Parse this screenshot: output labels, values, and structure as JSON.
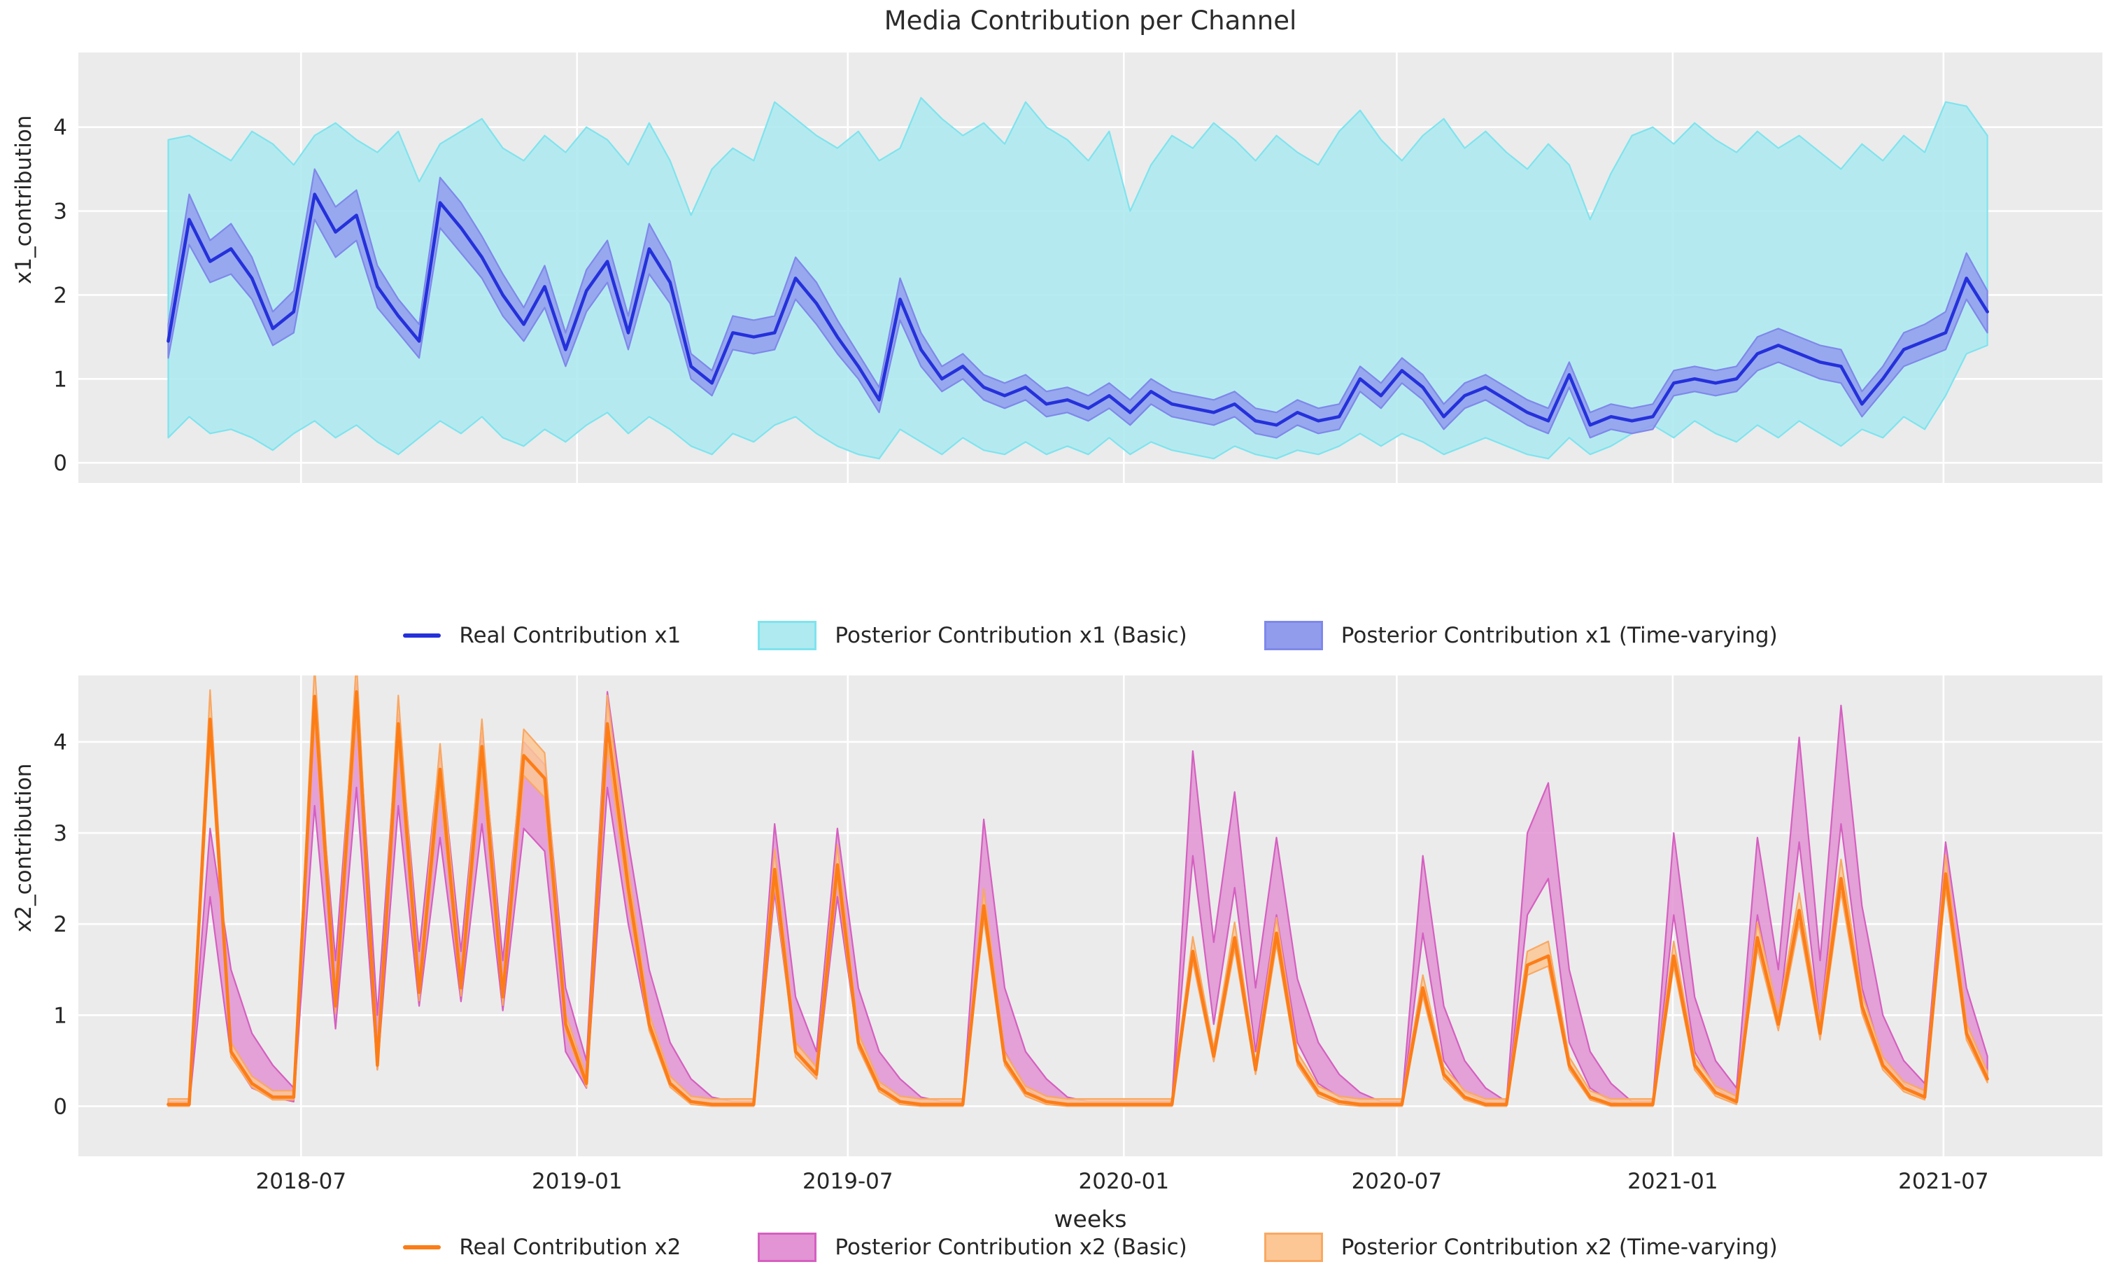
{
  "title": "Media Contribution per Channel",
  "xlabel": "weeks",
  "colors": {
    "figure_bg": "#ffffff",
    "plot_bg": "#ebebeb",
    "grid": "#ffffff",
    "text": "#262626",
    "x1_line": "#2531da",
    "x1_basic_fill": "#aeeaf0",
    "x1_basic_edge": "#7fe3ee",
    "x1_tv_fill": "#929ced",
    "x1_tv_edge": "#7f88ea",
    "x2_line": "#fc7d17",
    "x2_basic_fill": "#e294d4",
    "x2_basic_edge": "#d55fc0",
    "x2_tv_fill": "#fcc795",
    "x2_tv_edge": "#f9a863"
  },
  "chart_data": [
    {
      "type": "line",
      "ylabel": "x1_contribution",
      "yticks": [
        0,
        1,
        2,
        3,
        4
      ],
      "ylim": [
        -0.24,
        4.89
      ],
      "xlim": [
        -8.6,
        185
      ],
      "week_step": 2,
      "show_xtick_labels": false,
      "xticks": [
        {
          "week": 12.7,
          "label": "2018-07"
        },
        {
          "week": 39.1,
          "label": "2019-01"
        },
        {
          "week": 65.0,
          "label": "2019-07"
        },
        {
          "week": 91.4,
          "label": "2020-01"
        },
        {
          "week": 117.5,
          "label": "2020-07"
        },
        {
          "week": 143.9,
          "label": "2021-01"
        },
        {
          "week": 169.8,
          "label": "2021-07"
        }
      ],
      "legend": [
        {
          "label": "Real Contribution x1",
          "swatch": "line",
          "color_key": "x1_line"
        },
        {
          "label": "Posterior Contribution x1 (Basic)",
          "swatch": "patch",
          "fill_key": "x1_basic_fill",
          "edge_key": "x1_basic_edge"
        },
        {
          "label": "Posterior Contribution x1 (Time-varying)",
          "swatch": "patch",
          "fill_key": "x1_tv_fill",
          "edge_key": "x1_tv_edge"
        }
      ],
      "series": {
        "real": [
          1.45,
          2.9,
          2.4,
          2.55,
          2.2,
          1.6,
          1.8,
          3.2,
          2.75,
          2.95,
          2.1,
          1.75,
          1.45,
          3.1,
          2.8,
          2.45,
          2.0,
          1.65,
          2.1,
          1.35,
          2.05,
          2.4,
          1.55,
          2.55,
          2.15,
          1.15,
          0.95,
          1.55,
          1.5,
          1.55,
          2.2,
          1.9,
          1.5,
          1.15,
          0.75,
          1.95,
          1.35,
          1.0,
          1.15,
          0.9,
          0.8,
          0.9,
          0.7,
          0.75,
          0.65,
          0.8,
          0.6,
          0.85,
          0.7,
          0.65,
          0.6,
          0.7,
          0.5,
          0.45,
          0.6,
          0.5,
          0.55,
          1.0,
          0.8,
          1.1,
          0.9,
          0.55,
          0.8,
          0.9,
          0.75,
          0.6,
          0.5,
          1.05,
          0.45,
          0.55,
          0.5,
          0.55,
          0.95,
          1.0,
          0.95,
          1.0,
          1.3,
          1.4,
          1.3,
          1.2,
          1.15,
          0.7,
          1.0,
          1.35,
          1.45,
          1.55,
          2.2,
          1.8
        ],
        "tv_lo": [
          1.25,
          2.6,
          2.15,
          2.25,
          1.95,
          1.4,
          1.55,
          2.9,
          2.45,
          2.65,
          1.85,
          1.55,
          1.25,
          2.8,
          2.5,
          2.2,
          1.75,
          1.45,
          1.85,
          1.15,
          1.8,
          2.15,
          1.35,
          2.25,
          1.9,
          1.0,
          0.8,
          1.35,
          1.3,
          1.35,
          1.95,
          1.65,
          1.3,
          1.0,
          0.6,
          1.7,
          1.15,
          0.85,
          1.0,
          0.75,
          0.65,
          0.75,
          0.55,
          0.6,
          0.5,
          0.65,
          0.45,
          0.7,
          0.55,
          0.5,
          0.45,
          0.55,
          0.35,
          0.3,
          0.45,
          0.35,
          0.4,
          0.85,
          0.65,
          0.95,
          0.75,
          0.4,
          0.65,
          0.75,
          0.6,
          0.45,
          0.35,
          0.9,
          0.3,
          0.4,
          0.35,
          0.4,
          0.8,
          0.85,
          0.8,
          0.85,
          1.1,
          1.2,
          1.1,
          1.0,
          0.95,
          0.55,
          0.85,
          1.15,
          1.25,
          1.35,
          1.95,
          1.55
        ],
        "tv_hi": [
          1.65,
          3.2,
          2.65,
          2.85,
          2.45,
          1.8,
          2.05,
          3.5,
          3.05,
          3.25,
          2.35,
          1.95,
          1.65,
          3.4,
          3.1,
          2.7,
          2.25,
          1.85,
          2.35,
          1.55,
          2.3,
          2.65,
          1.75,
          2.85,
          2.4,
          1.3,
          1.1,
          1.75,
          1.7,
          1.75,
          2.45,
          2.15,
          1.7,
          1.3,
          0.9,
          2.2,
          1.55,
          1.15,
          1.3,
          1.05,
          0.95,
          1.05,
          0.85,
          0.9,
          0.8,
          0.95,
          0.75,
          1.0,
          0.85,
          0.8,
          0.75,
          0.85,
          0.65,
          0.6,
          0.75,
          0.65,
          0.7,
          1.15,
          0.95,
          1.25,
          1.05,
          0.7,
          0.95,
          1.05,
          0.9,
          0.75,
          0.65,
          1.2,
          0.6,
          0.7,
          0.65,
          0.7,
          1.1,
          1.15,
          1.1,
          1.15,
          1.5,
          1.6,
          1.5,
          1.4,
          1.35,
          0.85,
          1.15,
          1.55,
          1.65,
          1.8,
          2.5,
          2.05
        ],
        "basic_lo": [
          0.3,
          0.55,
          0.35,
          0.4,
          0.3,
          0.15,
          0.35,
          0.5,
          0.3,
          0.45,
          0.25,
          0.1,
          0.3,
          0.5,
          0.35,
          0.55,
          0.3,
          0.2,
          0.4,
          0.25,
          0.45,
          0.6,
          0.35,
          0.55,
          0.4,
          0.2,
          0.1,
          0.35,
          0.25,
          0.45,
          0.55,
          0.35,
          0.2,
          0.1,
          0.05,
          0.4,
          0.25,
          0.1,
          0.3,
          0.15,
          0.1,
          0.25,
          0.1,
          0.2,
          0.1,
          0.3,
          0.1,
          0.25,
          0.15,
          0.1,
          0.05,
          0.2,
          0.1,
          0.05,
          0.15,
          0.1,
          0.2,
          0.35,
          0.2,
          0.35,
          0.25,
          0.1,
          0.2,
          0.3,
          0.2,
          0.1,
          0.05,
          0.3,
          0.1,
          0.2,
          0.35,
          0.45,
          0.3,
          0.5,
          0.35,
          0.25,
          0.45,
          0.3,
          0.5,
          0.35,
          0.2,
          0.4,
          0.3,
          0.55,
          0.4,
          0.8,
          1.3,
          1.4
        ],
        "basic_hi": [
          3.85,
          3.9,
          3.75,
          3.6,
          3.95,
          3.8,
          3.55,
          3.9,
          4.05,
          3.85,
          3.7,
          3.95,
          3.35,
          3.8,
          3.95,
          4.1,
          3.75,
          3.6,
          3.9,
          3.7,
          4.0,
          3.85,
          3.55,
          4.05,
          3.6,
          2.95,
          3.5,
          3.75,
          3.6,
          4.3,
          4.1,
          3.9,
          3.75,
          3.95,
          3.6,
          3.75,
          4.35,
          4.1,
          3.9,
          4.05,
          3.8,
          4.3,
          4.0,
          3.85,
          3.6,
          3.95,
          3.0,
          3.55,
          3.9,
          3.75,
          4.05,
          3.85,
          3.6,
          3.9,
          3.7,
          3.55,
          3.95,
          4.2,
          3.85,
          3.6,
          3.9,
          4.1,
          3.75,
          3.95,
          3.7,
          3.5,
          3.8,
          3.55,
          2.9,
          3.45,
          3.9,
          4.0,
          3.8,
          4.05,
          3.85,
          3.7,
          3.95,
          3.75,
          3.9,
          3.7,
          3.5,
          3.8,
          3.6,
          3.9,
          3.7,
          4.3,
          4.25,
          3.9
        ]
      }
    },
    {
      "type": "line",
      "ylabel": "x2_contribution",
      "yticks": [
        0,
        1,
        2,
        3,
        4
      ],
      "ylim": [
        -0.55,
        4.73
      ],
      "xlim": [
        -8.6,
        185
      ],
      "week_step": 2,
      "show_xtick_labels": true,
      "xticks": [
        {
          "week": 12.7,
          "label": "2018-07"
        },
        {
          "week": 39.1,
          "label": "2019-01"
        },
        {
          "week": 65.0,
          "label": "2019-07"
        },
        {
          "week": 91.4,
          "label": "2020-01"
        },
        {
          "week": 117.5,
          "label": "2020-07"
        },
        {
          "week": 143.9,
          "label": "2021-01"
        },
        {
          "week": 169.8,
          "label": "2021-07"
        }
      ],
      "legend": [
        {
          "label": "Real Contribution x2",
          "swatch": "line",
          "color_key": "x2_line"
        },
        {
          "label": "Posterior Contribution x2 (Basic)",
          "swatch": "patch",
          "fill_key": "x2_basic_fill",
          "edge_key": "x2_basic_edge"
        },
        {
          "label": "Posterior Contribution x2 (Time-varying)",
          "swatch": "patch",
          "fill_key": "x2_tv_fill",
          "edge_key": "x2_tv_edge"
        }
      ],
      "series": {
        "real": [
          0.02,
          0.02,
          4.25,
          0.6,
          0.25,
          0.1,
          0.1,
          4.5,
          1.1,
          4.55,
          0.45,
          4.2,
          1.25,
          3.7,
          1.3,
          3.95,
          1.2,
          3.85,
          3.6,
          0.9,
          0.25,
          4.2,
          2.4,
          0.9,
          0.25,
          0.05,
          0.02,
          0.02,
          0.02,
          2.6,
          0.6,
          0.35,
          2.65,
          0.7,
          0.2,
          0.05,
          0.02,
          0.02,
          0.02,
          2.2,
          0.5,
          0.15,
          0.05,
          0.02,
          0.02,
          0.02,
          0.02,
          0.02,
          0.02,
          1.7,
          0.55,
          1.85,
          0.4,
          1.9,
          0.5,
          0.15,
          0.05,
          0.02,
          0.02,
          0.02,
          1.3,
          0.35,
          0.1,
          0.02,
          0.02,
          1.55,
          1.65,
          0.45,
          0.1,
          0.02,
          0.02,
          0.02,
          1.65,
          0.45,
          0.15,
          0.05,
          1.85,
          0.9,
          2.15,
          0.8,
          2.5,
          1.1,
          0.45,
          0.2,
          0.1,
          2.55,
          0.8,
          0.3
        ],
        "basic_lo": [
          0,
          0,
          2.3,
          0.55,
          0.2,
          0.1,
          0.05,
          3.3,
          0.85,
          3.5,
          0.4,
          3.3,
          1.1,
          2.95,
          1.15,
          3.1,
          1.05,
          3.05,
          2.8,
          0.6,
          0.2,
          3.5,
          2.0,
          0.85,
          0.25,
          0.05,
          0,
          0,
          0,
          2.35,
          0.6,
          0.3,
          2.3,
          0.7,
          0.25,
          0.05,
          0,
          0,
          0,
          2.3,
          0.6,
          0.2,
          0.05,
          0,
          0,
          0,
          0,
          0,
          0,
          2.75,
          0.9,
          2.4,
          0.6,
          2.1,
          0.7,
          0.25,
          0.1,
          0,
          0,
          0,
          1.9,
          0.5,
          0.15,
          0.05,
          0,
          2.1,
          2.5,
          0.7,
          0.2,
          0.05,
          0,
          0,
          2.1,
          0.6,
          0.2,
          0.05,
          2.1,
          0.95,
          2.9,
          0.9,
          3.1,
          1.3,
          0.5,
          0.25,
          0.1,
          2.6,
          0.85,
          0.3
        ],
        "basic_hi": [
          0.05,
          0.05,
          3.05,
          1.5,
          0.8,
          0.45,
          0.2,
          4.35,
          1.6,
          4.65,
          1.0,
          4.3,
          1.7,
          3.9,
          1.7,
          4.1,
          1.6,
          4.0,
          3.75,
          1.3,
          0.5,
          4.55,
          2.9,
          1.5,
          0.7,
          0.3,
          0.1,
          0.05,
          0.05,
          3.1,
          1.2,
          0.6,
          3.05,
          1.3,
          0.6,
          0.3,
          0.1,
          0.05,
          0.05,
          3.15,
          1.3,
          0.6,
          0.3,
          0.1,
          0.05,
          0.05,
          0.05,
          0.05,
          0.05,
          3.9,
          1.8,
          3.45,
          1.3,
          2.95,
          1.4,
          0.7,
          0.35,
          0.15,
          0.05,
          0.05,
          2.75,
          1.1,
          0.5,
          0.2,
          0.05,
          3.0,
          3.55,
          1.5,
          0.6,
          0.25,
          0.05,
          0.05,
          3.0,
          1.2,
          0.5,
          0.2,
          2.95,
          1.5,
          4.05,
          1.6,
          4.4,
          2.2,
          1.0,
          0.5,
          0.25,
          2.9,
          1.3,
          0.55
        ],
        "tv_lo": [
          0,
          0,
          4.01,
          0.54,
          0.21,
          0.07,
          0.07,
          4.25,
          1.02,
          4.29,
          0.4,
          3.96,
          1.16,
          3.49,
          1.21,
          3.72,
          1.11,
          3.63,
          3.39,
          0.83,
          0.21,
          3.96,
          2.25,
          0.83,
          0.21,
          0.02,
          0,
          0,
          0,
          2.44,
          0.54,
          0.3,
          2.49,
          0.64,
          0.16,
          0.02,
          0,
          0,
          0,
          2.06,
          0.45,
          0.11,
          0.02,
          0,
          0,
          0,
          0,
          0,
          0,
          1.59,
          0.49,
          1.73,
          0.35,
          1.78,
          0.45,
          0.11,
          0.02,
          0,
          0,
          0,
          1.21,
          0.3,
          0.07,
          0,
          0,
          1.44,
          1.54,
          0.4,
          0.07,
          0,
          0,
          0,
          1.54,
          0.4,
          0.11,
          0.02,
          1.73,
          0.83,
          2.01,
          0.73,
          2.35,
          1.02,
          0.4,
          0.16,
          0.07,
          2.39,
          0.73,
          0.26
        ],
        "tv_hi": [
          0.08,
          0.08,
          4.57,
          0.7,
          0.33,
          0.17,
          0.17,
          4.83,
          1.23,
          4.88,
          0.54,
          4.51,
          1.39,
          3.98,
          1.44,
          4.25,
          1.33,
          4.14,
          3.88,
          1.01,
          0.33,
          4.51,
          2.6,
          1.01,
          0.33,
          0.11,
          0.08,
          0.08,
          0.08,
          2.82,
          0.7,
          0.43,
          2.87,
          0.8,
          0.27,
          0.11,
          0.08,
          0.08,
          0.08,
          2.39,
          0.59,
          0.22,
          0.11,
          0.08,
          0.08,
          0.08,
          0.08,
          0.08,
          0.08,
          1.86,
          0.64,
          2.02,
          0.48,
          2.07,
          0.59,
          0.22,
          0.11,
          0.08,
          0.08,
          0.08,
          1.44,
          0.43,
          0.17,
          0.08,
          0.08,
          1.7,
          1.81,
          0.54,
          0.17,
          0.08,
          0.08,
          0.08,
          1.81,
          0.54,
          0.22,
          0.11,
          2.02,
          1.01,
          2.34,
          0.91,
          2.71,
          1.23,
          0.54,
          0.27,
          0.17,
          2.76,
          0.91,
          0.38
        ]
      }
    }
  ]
}
